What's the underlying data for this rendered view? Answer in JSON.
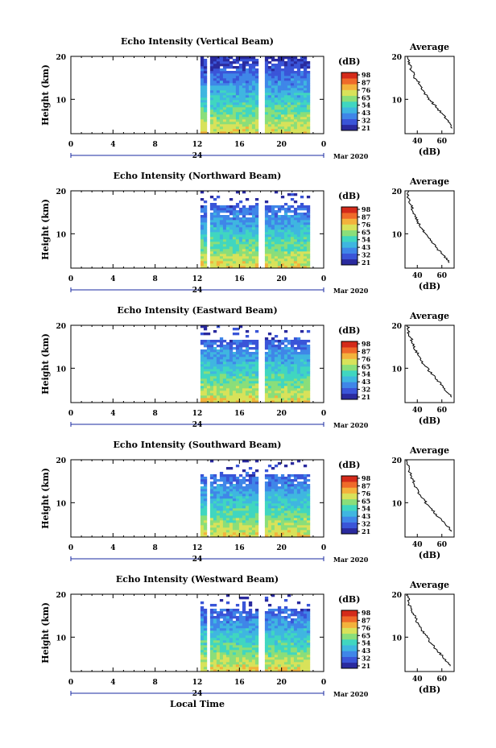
{
  "figure": {
    "xlabel": "Local Time",
    "month_label": "Mar 2020",
    "cb_unit": "(dB)",
    "avg_title": "Average",
    "avg_xlabel": "(dB)",
    "ylabel": "Height (km)",
    "colors": [
      "#2a2a9e",
      "#3a55d8",
      "#3f86e8",
      "#3fb6e0",
      "#40d6c0",
      "#8ade7a",
      "#d8e25a",
      "#f3b23c",
      "#ef6a2a",
      "#d42a1a"
    ]
  },
  "chart_data": [
    {
      "type": "heatmap",
      "title": "Echo Intensity (Vertical Beam)",
      "xlabel": "Local Time",
      "ylabel": "Height (km)",
      "xlim": [
        0,
        24
      ],
      "ylim": [
        2,
        20
      ],
      "x_ticks": [
        "0",
        "4",
        "8",
        "12",
        "16",
        "20",
        "0"
      ],
      "x_tick_values": [
        0,
        4,
        8,
        12,
        16,
        20,
        24
      ],
      "date_label": "24",
      "y_ticks": [
        "20",
        "10"
      ],
      "data_start_hour": 12.3,
      "data_end_hour": 22.5,
      "gap_hours": [
        [
          12.7,
          13.1
        ],
        [
          17.8,
          18.2
        ]
      ],
      "top_height_km": 20,
      "colorbar": {
        "unit": "(dB)",
        "ticks": [
          "98",
          "87",
          "76",
          "65",
          "54",
          "43",
          "32",
          "21"
        ]
      },
      "average_profile": {
        "title": "Average",
        "xlabel": "(dB)",
        "x_ticks": [
          "40",
          "60"
        ],
        "y_ticks": [
          "20",
          "10"
        ],
        "xlim": [
          30,
          70
        ],
        "ylim": [
          2,
          20
        ],
        "heights_km": [
          20,
          19,
          18,
          17,
          16,
          15,
          14,
          13,
          12,
          11,
          10,
          9,
          8,
          7,
          6,
          5,
          4,
          3
        ],
        "values_db": [
          33,
          33,
          34,
          35,
          37,
          38,
          41,
          43,
          45,
          47,
          50,
          53,
          56,
          59,
          62,
          65,
          67,
          69
        ]
      }
    },
    {
      "type": "heatmap",
      "title": "Echo Intensity (Northward Beam)",
      "xlabel": "Local Time",
      "ylabel": "Height (km)",
      "xlim": [
        0,
        24
      ],
      "ylim": [
        2,
        20
      ],
      "x_ticks": [
        "0",
        "4",
        "8",
        "12",
        "16",
        "20",
        "0"
      ],
      "x_tick_values": [
        0,
        4,
        8,
        12,
        16,
        20,
        24
      ],
      "date_label": "24",
      "y_ticks": [
        "20",
        "10"
      ],
      "data_start_hour": 12.3,
      "data_end_hour": 22.5,
      "gap_hours": [
        [
          12.7,
          13.1
        ],
        [
          17.8,
          18.2
        ]
      ],
      "top_height_km": 17,
      "colorbar": {
        "unit": "(dB)",
        "ticks": [
          "98",
          "87",
          "76",
          "65",
          "54",
          "43",
          "32",
          "21"
        ]
      },
      "average_profile": {
        "title": "Average",
        "xlabel": "(dB)",
        "x_ticks": [
          "40",
          "60"
        ],
        "y_ticks": [
          "20",
          "10"
        ],
        "xlim": [
          30,
          70
        ],
        "ylim": [
          2,
          20
        ],
        "heights_km": [
          20,
          19,
          18,
          17,
          16,
          15,
          14,
          13,
          12,
          11,
          10,
          9,
          8,
          7,
          6,
          5,
          4,
          3
        ],
        "values_db": [
          33,
          32,
          33,
          34,
          36,
          36,
          38,
          40,
          42,
          44,
          46,
          49,
          52,
          55,
          58,
          61,
          64,
          68
        ]
      }
    },
    {
      "type": "heatmap",
      "title": "Echo Intensity (Eastward Beam)",
      "xlabel": "Local Time",
      "ylabel": "Height (km)",
      "xlim": [
        0,
        24
      ],
      "ylim": [
        2,
        20
      ],
      "x_ticks": [
        "0",
        "4",
        "8",
        "12",
        "16",
        "20",
        "0"
      ],
      "x_tick_values": [
        0,
        4,
        8,
        12,
        16,
        20,
        24
      ],
      "date_label": "24",
      "y_ticks": [
        "20",
        "10"
      ],
      "data_start_hour": 12.3,
      "data_end_hour": 22.5,
      "gap_hours": [
        [
          17.8,
          18.2
        ]
      ],
      "top_height_km": 17,
      "colorbar": {
        "unit": "(dB)",
        "ticks": [
          "98",
          "87",
          "76",
          "65",
          "54",
          "43",
          "32",
          "21"
        ]
      },
      "average_profile": {
        "title": "Average",
        "xlabel": "(dB)",
        "x_ticks": [
          "40",
          "60"
        ],
        "y_ticks": [
          "20",
          "10"
        ],
        "xlim": [
          30,
          70
        ],
        "ylim": [
          2,
          20
        ],
        "heights_km": [
          20,
          19,
          18,
          17,
          16,
          15,
          14,
          13,
          12,
          11,
          10,
          9,
          8,
          7,
          6,
          5,
          4,
          3
        ],
        "values_db": [
          32,
          33,
          33,
          35,
          36,
          37,
          39,
          41,
          43,
          45,
          48,
          51,
          54,
          57,
          60,
          63,
          66,
          69
        ]
      }
    },
    {
      "type": "heatmap",
      "title": "Echo Intensity (Southward Beam)",
      "xlabel": "Local Time",
      "ylabel": "Height (km)",
      "xlim": [
        0,
        24
      ],
      "ylim": [
        2,
        20
      ],
      "x_ticks": [
        "0",
        "4",
        "8",
        "12",
        "16",
        "20",
        "0"
      ],
      "x_tick_values": [
        0,
        4,
        8,
        12,
        16,
        20,
        24
      ],
      "date_label": "24",
      "y_ticks": [
        "20",
        "10"
      ],
      "data_start_hour": 12.3,
      "data_end_hour": 22.5,
      "gap_hours": [
        [
          12.7,
          13.1
        ],
        [
          17.8,
          18.2
        ]
      ],
      "top_height_km": 17,
      "colorbar": {
        "unit": "(dB)",
        "ticks": [
          "98",
          "87",
          "76",
          "65",
          "54",
          "43",
          "32",
          "21"
        ]
      },
      "average_profile": {
        "title": "Average",
        "xlabel": "(dB)",
        "x_ticks": [
          "40",
          "60"
        ],
        "y_ticks": [
          "20",
          "10"
        ],
        "xlim": [
          30,
          70
        ],
        "ylim": [
          2,
          20
        ],
        "heights_km": [
          20,
          19,
          18,
          17,
          16,
          15,
          14,
          13,
          12,
          11,
          10,
          9,
          8,
          7,
          6,
          5,
          4,
          3
        ],
        "values_db": [
          32,
          32,
          33,
          34,
          35,
          37,
          38,
          40,
          42,
          45,
          47,
          50,
          53,
          56,
          60,
          63,
          66,
          69
        ]
      }
    },
    {
      "type": "heatmap",
      "title": "Echo Intensity (Westward Beam)",
      "xlabel": "Local Time",
      "ylabel": "Height (km)",
      "xlim": [
        0,
        24
      ],
      "ylim": [
        2,
        20
      ],
      "x_ticks": [
        "0",
        "4",
        "8",
        "12",
        "16",
        "20",
        "0"
      ],
      "x_tick_values": [
        0,
        4,
        8,
        12,
        16,
        20,
        24
      ],
      "date_label": "24",
      "y_ticks": [
        "20",
        "10"
      ],
      "data_start_hour": 12.3,
      "data_end_hour": 22.5,
      "gap_hours": [
        [
          12.7,
          13.1
        ],
        [
          17.8,
          18.2
        ]
      ],
      "top_height_km": 17,
      "colorbar": {
        "unit": "(dB)",
        "ticks": [
          "98",
          "87",
          "76",
          "65",
          "54",
          "43",
          "32",
          "21"
        ]
      },
      "average_profile": {
        "title": "Average",
        "xlabel": "(dB)",
        "x_ticks": [
          "40",
          "60"
        ],
        "y_ticks": [
          "20",
          "10"
        ],
        "xlim": [
          30,
          70
        ],
        "ylim": [
          2,
          20
        ],
        "heights_km": [
          20,
          19,
          18,
          17,
          16,
          15,
          14,
          13,
          12,
          11,
          10,
          9,
          8,
          7,
          6,
          5,
          4,
          3
        ],
        "values_db": [
          32,
          33,
          33,
          34,
          36,
          38,
          39,
          41,
          43,
          45,
          48,
          50,
          53,
          56,
          59,
          62,
          65,
          68
        ]
      }
    }
  ]
}
